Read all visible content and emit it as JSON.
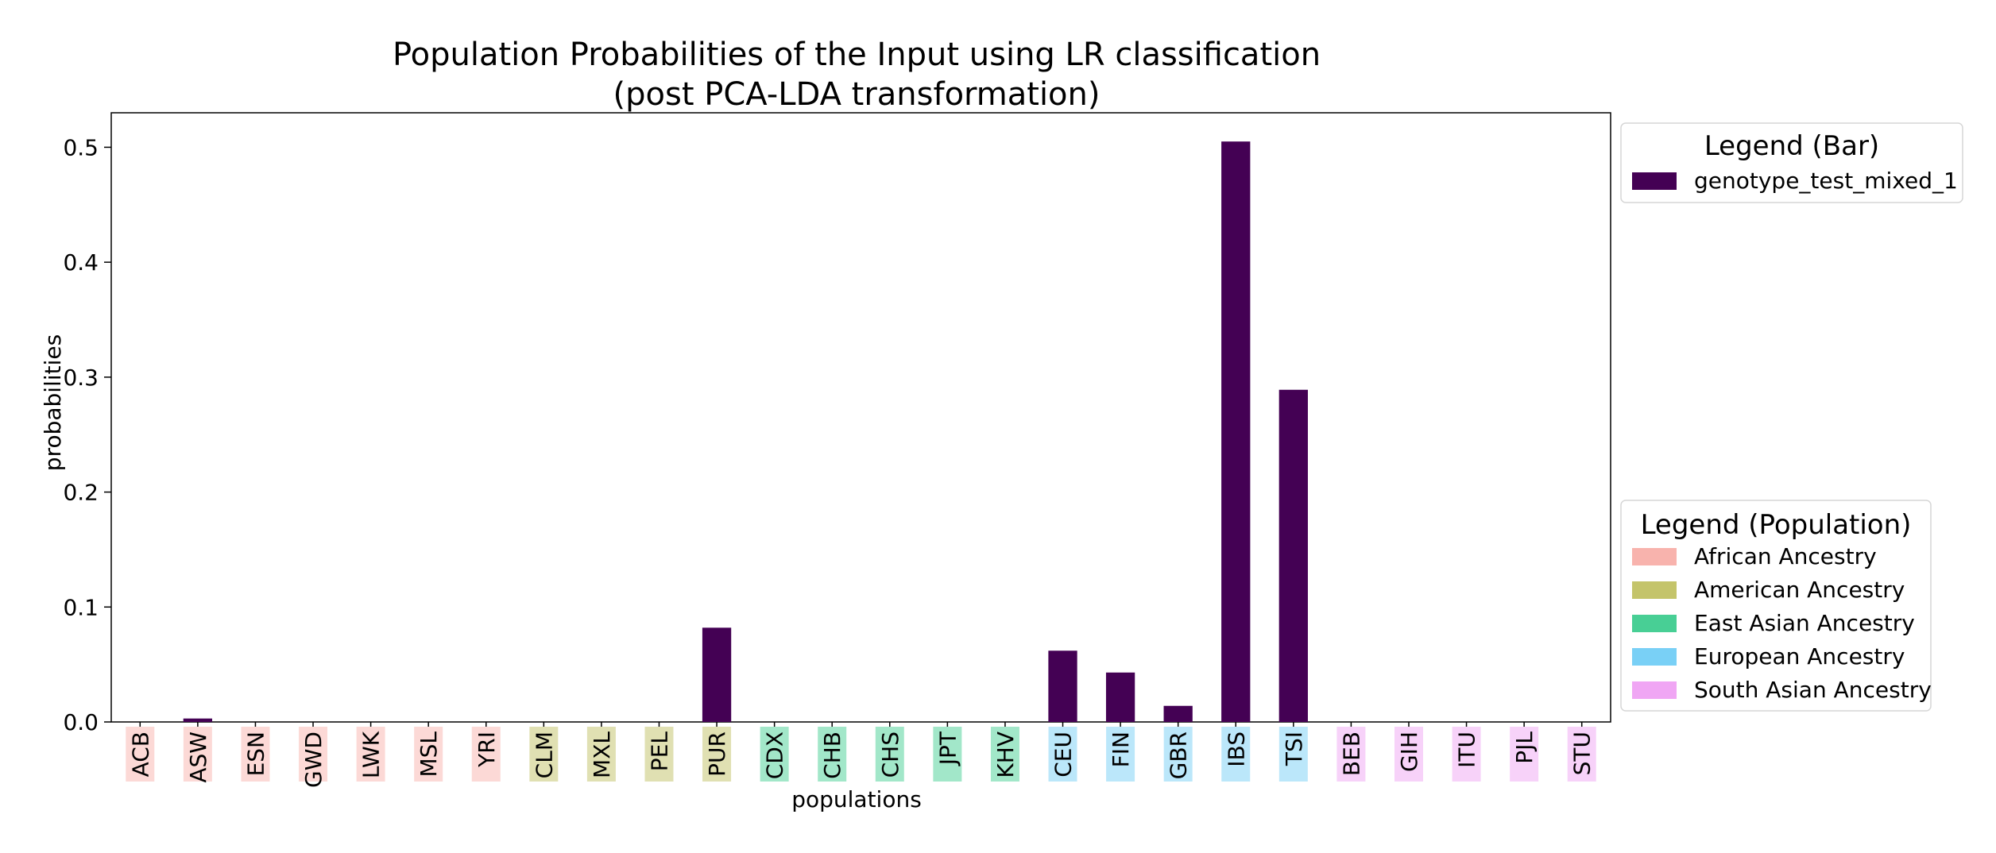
{
  "chart_data": {
    "type": "bar",
    "title_line1": "Population Probabilities of the Input using LR classification",
    "title_line2": "(post PCA-LDA transformation)",
    "xlabel": "populations",
    "ylabel": "probabilities",
    "ylim": [
      0,
      0.53
    ],
    "yticks": [
      0.0,
      0.1,
      0.2,
      0.3,
      0.4,
      0.5
    ],
    "ytick_labels": [
      "0.0",
      "0.1",
      "0.2",
      "0.3",
      "0.4",
      "0.5"
    ],
    "grid": false,
    "categories": [
      "ACB",
      "ASW",
      "ESN",
      "GWD",
      "LWK",
      "MSL",
      "YRI",
      "CLM",
      "MXL",
      "PEL",
      "PUR",
      "CDX",
      "CHB",
      "CHS",
      "JPT",
      "KHV",
      "CEU",
      "FIN",
      "GBR",
      "IBS",
      "TSI",
      "BEB",
      "GIH",
      "ITU",
      "PJL",
      "STU"
    ],
    "category_groups": [
      "African Ancestry",
      "African Ancestry",
      "African Ancestry",
      "African Ancestry",
      "African Ancestry",
      "African Ancestry",
      "African Ancestry",
      "American Ancestry",
      "American Ancestry",
      "American Ancestry",
      "American Ancestry",
      "East Asian Ancestry",
      "East Asian Ancestry",
      "East Asian Ancestry",
      "East Asian Ancestry",
      "East Asian Ancestry",
      "European Ancestry",
      "European Ancestry",
      "European Ancestry",
      "European Ancestry",
      "European Ancestry",
      "South Asian Ancestry",
      "South Asian Ancestry",
      "South Asian Ancestry",
      "South Asian Ancestry",
      "South Asian Ancestry"
    ],
    "series": [
      {
        "name": "genotype_test_mixed_1",
        "color": "#440154",
        "values": [
          0.0,
          0.003,
          0.0,
          0.0,
          0.0,
          0.0,
          0.0,
          0.0,
          0.0,
          0.0,
          0.082,
          0.0,
          0.0,
          0.0,
          0.0,
          0.0,
          0.062,
          0.043,
          0.014,
          0.505,
          0.289,
          0.0,
          0.0,
          0.0,
          0.0,
          0.0
        ]
      }
    ],
    "legend_bar": {
      "title": "Legend (Bar)",
      "placement": "top-right outside",
      "entries": [
        {
          "label": "genotype_test_mixed_1",
          "color": "#440154"
        }
      ]
    },
    "legend_population": {
      "title": "Legend (Population)",
      "placement": "bottom-right outside",
      "entries": [
        {
          "label": "African Ancestry",
          "color": "#f8b3ad"
        },
        {
          "label": "American Ancestry",
          "color": "#c4c46a"
        },
        {
          "label": "East Asian Ancestry",
          "color": "#48cf95"
        },
        {
          "label": "European Ancestry",
          "color": "#79d0f6"
        },
        {
          "label": "South Asian Ancestry",
          "color": "#f0a6f4"
        }
      ]
    },
    "group_label_backgrounds": {
      "African Ancestry": "#fcd9d6",
      "American Ancestry": "#e0e0b2",
      "East Asian Ancestry": "#a2e7c9",
      "European Ancestry": "#bbe7fa",
      "South Asian Ancestry": "#f7d2f9"
    }
  }
}
